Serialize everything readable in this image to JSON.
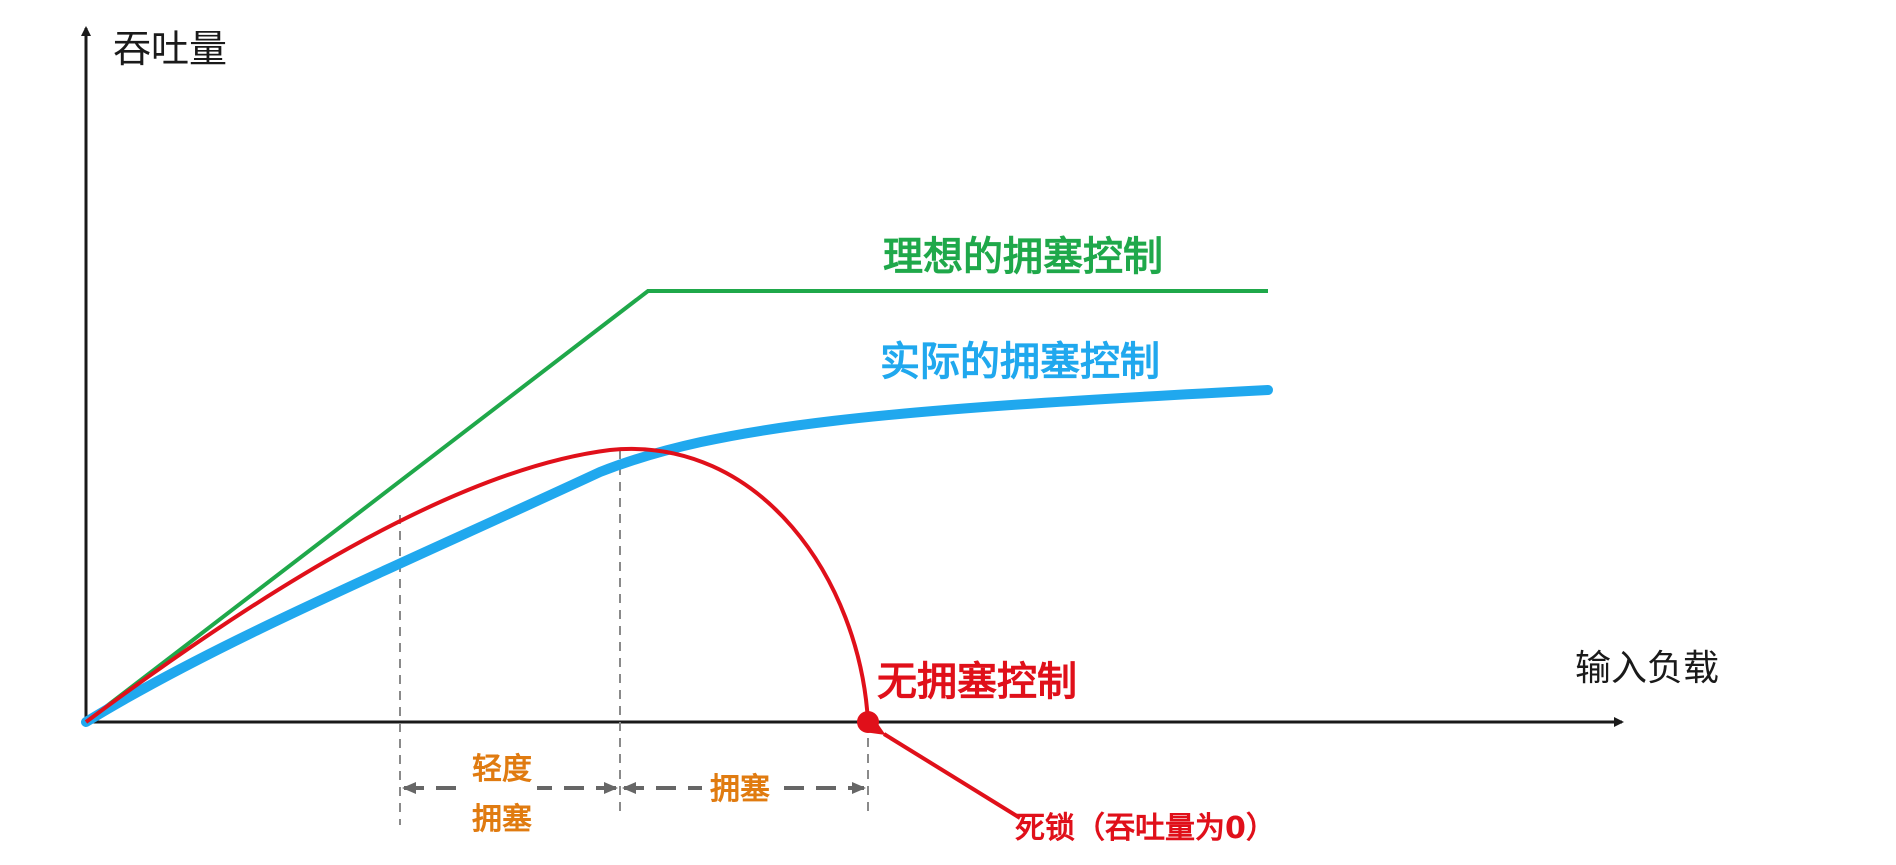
{
  "axes": {
    "y_label": "吞吐量",
    "x_label": "输入负载"
  },
  "curves": {
    "ideal": {
      "label": "理想的拥塞控制",
      "color": "#1fa84a"
    },
    "actual": {
      "label": "实际的拥塞控制",
      "color": "#20a8ee"
    },
    "none": {
      "label": "无拥塞控制",
      "color": "#e0101a"
    }
  },
  "regions": {
    "light_line1": "轻度",
    "light_line2": "拥塞",
    "congestion": "拥塞",
    "label_color": "#e07b10"
  },
  "annotation": {
    "deadlock": "死锁（吞吐量为0）"
  },
  "colors": {
    "axis": "#1a1a1a",
    "guide": "#8a8a8a",
    "arrow": "#666666"
  }
}
